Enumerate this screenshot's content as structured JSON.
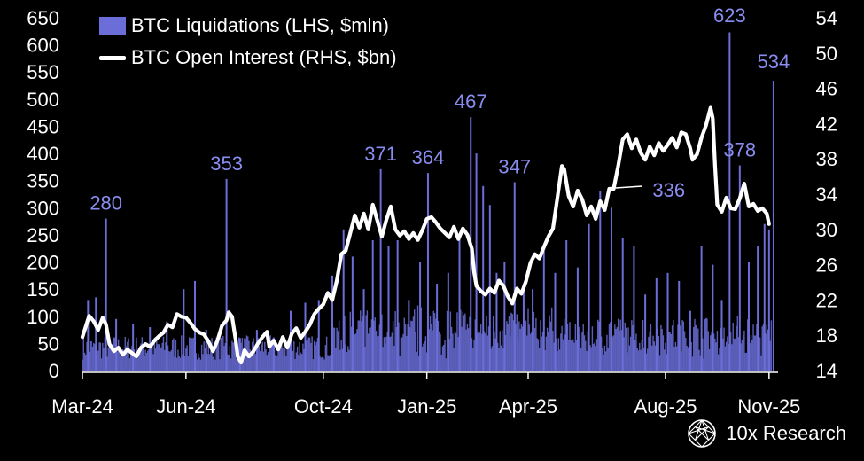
{
  "legend": {
    "bars": "BTC Liquidations (LHS, $mln)",
    "line": "BTC Open Interest (RHS, $bn)"
  },
  "brand": {
    "name": "10x Research",
    "icon": "globe-lattice-icon"
  },
  "colors": {
    "bars": "#6b6ed8",
    "line": "#ffffff",
    "annotation": "#8a8df0",
    "background": "#000000"
  },
  "chart_data": {
    "type": "bar+line",
    "x_ticks": [
      "Mar-24",
      "Jun-24",
      "Oct-24",
      "Jan-25",
      "Apr-25",
      "Aug-25",
      "Nov-25"
    ],
    "x_tick_days": [
      0,
      92,
      214,
      306,
      396,
      518,
      610
    ],
    "x_range_days": [
      0,
      618
    ],
    "y_left": {
      "ylim": [
        0,
        650
      ],
      "ticks": [
        "0",
        "50",
        "100",
        "150",
        "200",
        "250",
        "300",
        "350",
        "400",
        "450",
        "500",
        "550",
        "600",
        "650"
      ]
    },
    "y_right": {
      "ylim": [
        14,
        54
      ],
      "ticks": [
        "14",
        "18",
        "22",
        "26",
        "30",
        "34",
        "38",
        "42",
        "46",
        "50",
        "54"
      ]
    },
    "annotations": [
      {
        "text": "280",
        "day": 21,
        "value": 280
      },
      {
        "text": "353",
        "day": 128,
        "value": 353
      },
      {
        "text": "371",
        "day": 265,
        "value": 371
      },
      {
        "text": "364",
        "day": 307,
        "value": 364
      },
      {
        "text": "467",
        "day": 345,
        "value": 467
      },
      {
        "text": "347",
        "day": 384,
        "value": 347
      },
      {
        "text": "336",
        "day": 480,
        "value": 336
      },
      {
        "text": "623",
        "day": 575,
        "value": 623
      },
      {
        "text": "378",
        "day": 584,
        "value": 378
      },
      {
        "text": "534",
        "day": 614,
        "value": 534
      }
    ],
    "liquidation_spikes": [
      {
        "day": 5,
        "value": 130
      },
      {
        "day": 12,
        "value": 135
      },
      {
        "day": 21,
        "value": 280
      },
      {
        "day": 30,
        "value": 95
      },
      {
        "day": 45,
        "value": 85
      },
      {
        "day": 60,
        "value": 80
      },
      {
        "day": 75,
        "value": 90
      },
      {
        "day": 90,
        "value": 150
      },
      {
        "day": 100,
        "value": 165
      },
      {
        "day": 110,
        "value": 75
      },
      {
        "day": 128,
        "value": 353
      },
      {
        "day": 140,
        "value": 60
      },
      {
        "day": 155,
        "value": 75
      },
      {
        "day": 170,
        "value": 60
      },
      {
        "day": 185,
        "value": 110
      },
      {
        "day": 198,
        "value": 125
      },
      {
        "day": 210,
        "value": 130
      },
      {
        "day": 222,
        "value": 175
      },
      {
        "day": 232,
        "value": 260
      },
      {
        "day": 240,
        "value": 210
      },
      {
        "day": 250,
        "value": 150
      },
      {
        "day": 258,
        "value": 240
      },
      {
        "day": 265,
        "value": 371
      },
      {
        "day": 272,
        "value": 230
      },
      {
        "day": 280,
        "value": 240
      },
      {
        "day": 290,
        "value": 130
      },
      {
        "day": 300,
        "value": 200
      },
      {
        "day": 307,
        "value": 364
      },
      {
        "day": 315,
        "value": 160
      },
      {
        "day": 325,
        "value": 180
      },
      {
        "day": 335,
        "value": 245
      },
      {
        "day": 345,
        "value": 467
      },
      {
        "day": 350,
        "value": 400
      },
      {
        "day": 356,
        "value": 340
      },
      {
        "day": 362,
        "value": 305
      },
      {
        "day": 368,
        "value": 180
      },
      {
        "day": 375,
        "value": 200
      },
      {
        "day": 384,
        "value": 347
      },
      {
        "day": 392,
        "value": 160
      },
      {
        "day": 400,
        "value": 150
      },
      {
        "day": 410,
        "value": 220
      },
      {
        "day": 420,
        "value": 180
      },
      {
        "day": 430,
        "value": 240
      },
      {
        "day": 440,
        "value": 190
      },
      {
        "day": 450,
        "value": 270
      },
      {
        "day": 460,
        "value": 330
      },
      {
        "day": 470,
        "value": 300
      },
      {
        "day": 480,
        "value": 245
      },
      {
        "day": 490,
        "value": 230
      },
      {
        "day": 500,
        "value": 140
      },
      {
        "day": 510,
        "value": 170
      },
      {
        "day": 520,
        "value": 180
      },
      {
        "day": 530,
        "value": 165
      },
      {
        "day": 540,
        "value": 110
      },
      {
        "day": 550,
        "value": 230
      },
      {
        "day": 560,
        "value": 195
      },
      {
        "day": 568,
        "value": 130
      },
      {
        "day": 575,
        "value": 623
      },
      {
        "day": 584,
        "value": 378
      },
      {
        "day": 592,
        "value": 200
      },
      {
        "day": 600,
        "value": 230
      },
      {
        "day": 606,
        "value": 270
      },
      {
        "day": 610,
        "value": 260
      },
      {
        "day": 614,
        "value": 534
      }
    ],
    "open_interest": [
      [
        0,
        17.8
      ],
      [
        3,
        19
      ],
      [
        6,
        20.2
      ],
      [
        10,
        19.6
      ],
      [
        14,
        18.6
      ],
      [
        18,
        20
      ],
      [
        21,
        19.2
      ],
      [
        24,
        17
      ],
      [
        28,
        16.2
      ],
      [
        32,
        16.6
      ],
      [
        36,
        15.8
      ],
      [
        40,
        16.4
      ],
      [
        44,
        16
      ],
      [
        48,
        15.6
      ],
      [
        52,
        16.6
      ],
      [
        56,
        17
      ],
      [
        60,
        16.7
      ],
      [
        64,
        17.4
      ],
      [
        68,
        17.9
      ],
      [
        72,
        18.3
      ],
      [
        76,
        19.2
      ],
      [
        80,
        18.9
      ],
      [
        84,
        20.4
      ],
      [
        88,
        20.1
      ],
      [
        92,
        20
      ],
      [
        96,
        19.4
      ],
      [
        100,
        18.7
      ],
      [
        104,
        18.3
      ],
      [
        108,
        18.1
      ],
      [
        112,
        17.3
      ],
      [
        116,
        16.2
      ],
      [
        120,
        17.4
      ],
      [
        124,
        19.1
      ],
      [
        128,
        19.7
      ],
      [
        130,
        20.6
      ],
      [
        133,
        20.1
      ],
      [
        136,
        17.6
      ],
      [
        138,
        15.6
      ],
      [
        141,
        14.9
      ],
      [
        144,
        16.3
      ],
      [
        148,
        15.6
      ],
      [
        152,
        16.2
      ],
      [
        156,
        17.1
      ],
      [
        160,
        17.8
      ],
      [
        164,
        18.4
      ],
      [
        166,
        16.7
      ],
      [
        170,
        17.4
      ],
      [
        174,
        16.4
      ],
      [
        178,
        17.8
      ],
      [
        182,
        16.6
      ],
      [
        186,
        18.2
      ],
      [
        190,
        18.8
      ],
      [
        194,
        17.7
      ],
      [
        198,
        18.4
      ],
      [
        202,
        19.2
      ],
      [
        206,
        20.4
      ],
      [
        210,
        21
      ],
      [
        214,
        21.5
      ],
      [
        218,
        22.8
      ],
      [
        222,
        22
      ],
      [
        226,
        24.2
      ],
      [
        230,
        27.2
      ],
      [
        234,
        27.6
      ],
      [
        238,
        29.6
      ],
      [
        242,
        31.6
      ],
      [
        246,
        30.2
      ],
      [
        250,
        31.8
      ],
      [
        254,
        30
      ],
      [
        258,
        32.8
      ],
      [
        262,
        31
      ],
      [
        266,
        29.2
      ],
      [
        270,
        31.1
      ],
      [
        274,
        32.6
      ],
      [
        278,
        30
      ],
      [
        282,
        29.3
      ],
      [
        286,
        29.8
      ],
      [
        290,
        28.9
      ],
      [
        294,
        29.6
      ],
      [
        298,
        28.8
      ],
      [
        302,
        29.9
      ],
      [
        306,
        31.2
      ],
      [
        310,
        31.4
      ],
      [
        314,
        30.8
      ],
      [
        318,
        30.1
      ],
      [
        322,
        29.6
      ],
      [
        326,
        29.1
      ],
      [
        330,
        30.3
      ],
      [
        334,
        28.9
      ],
      [
        338,
        30.1
      ],
      [
        342,
        29.4
      ],
      [
        346,
        27.8
      ],
      [
        348,
        25.2
      ],
      [
        350,
        23.6
      ],
      [
        354,
        23
      ],
      [
        358,
        22.6
      ],
      [
        362,
        23.3
      ],
      [
        366,
        22.8
      ],
      [
        370,
        24.2
      ],
      [
        374,
        23.6
      ],
      [
        378,
        22.4
      ],
      [
        382,
        21.6
      ],
      [
        386,
        23.3
      ],
      [
        390,
        22.7
      ],
      [
        394,
        24.1
      ],
      [
        398,
        26.2
      ],
      [
        402,
        27.2
      ],
      [
        406,
        26.7
      ],
      [
        410,
        28
      ],
      [
        414,
        29.2
      ],
      [
        418,
        30.1
      ],
      [
        422,
        33.6
      ],
      [
        426,
        37.2
      ],
      [
        428,
        36.8
      ],
      [
        432,
        33.8
      ],
      [
        436,
        32.6
      ],
      [
        440,
        34.4
      ],
      [
        444,
        33.4
      ],
      [
        448,
        31.6
      ],
      [
        452,
        32.6
      ],
      [
        456,
        31.2
      ],
      [
        460,
        33.2
      ],
      [
        464,
        32.2
      ],
      [
        468,
        34.6
      ],
      [
        472,
        34.6
      ],
      [
        476,
        37.2
      ],
      [
        480,
        40.2
      ],
      [
        484,
        40.8
      ],
      [
        488,
        39.2
      ],
      [
        492,
        40.2
      ],
      [
        496,
        38.7
      ],
      [
        500,
        37.9
      ],
      [
        504,
        39.4
      ],
      [
        508,
        38.4
      ],
      [
        512,
        39.8
      ],
      [
        516,
        38.9
      ],
      [
        520,
        39.6
      ],
      [
        524,
        40.4
      ],
      [
        528,
        39.3
      ],
      [
        532,
        41
      ],
      [
        536,
        40.8
      ],
      [
        540,
        39.2
      ],
      [
        542,
        37.9
      ],
      [
        546,
        38.5
      ],
      [
        550,
        40.4
      ],
      [
        554,
        41.8
      ],
      [
        558,
        43.8
      ],
      [
        560,
        42.6
      ],
      [
        562,
        37.2
      ],
      [
        564,
        32.8
      ],
      [
        568,
        32
      ],
      [
        572,
        33.6
      ],
      [
        576,
        32.4
      ],
      [
        580,
        32.3
      ],
      [
        584,
        33.5
      ],
      [
        588,
        35.2
      ],
      [
        592,
        32.6
      ],
      [
        596,
        32.9
      ],
      [
        600,
        32.1
      ],
      [
        604,
        32.4
      ],
      [
        608,
        31.8
      ],
      [
        610,
        30.6
      ]
    ]
  }
}
